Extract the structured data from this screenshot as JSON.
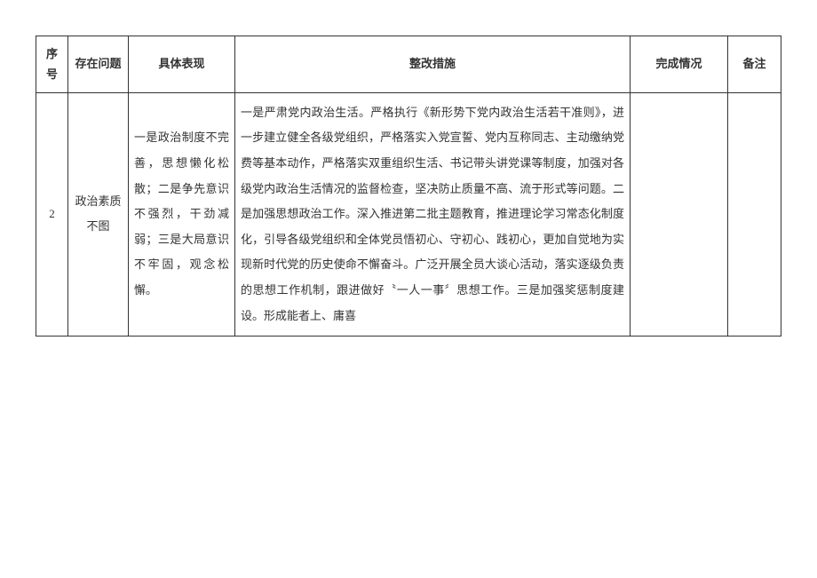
{
  "table": {
    "headers": {
      "seq": "序号",
      "problem": "存在问题",
      "detail": "具体表现",
      "measure": "整改措施",
      "status": "完成情况",
      "note": "备注"
    },
    "row": {
      "seq": "2",
      "problem": "政治素质不图",
      "detail": "一是政治制度不完善，思想懒化松散；二是争先意识不强烈，干劲减弱；三是大局意识不牢固，观念松懈。",
      "measure": "一是严肃党内政治生活。严格执行《新形势下党内政治生活若干准则》，进一步建立健全各级党组织，严格落实入党宣誓、党内互称同志、主动缴纳党费等基本动作，严格落实双重组织生活、书记带头讲党课等制度，加强对各级党内政治生活情况的监督检查，坚决防止质量不高、流于形式等问题。二是加强思想政治工作。深入推进第二批主题教育，推进理论学习常态化制度化，引导各级党组织和全体党员悟初心、守初心、践初心，更加自觉地为实现新时代党的历史使命不懈奋斗。广泛开展全员大谈心活动，落实逐级负责的思想工作机制，跟进做好〝一人一事〞思想工作。三是加强奖惩制度建设。形成能者上、庸喜",
      "status": "",
      "note": ""
    }
  },
  "colors": {
    "text": "#333333",
    "border": "#333333",
    "background": "#ffffff"
  },
  "typography": {
    "font_family": "SimSun",
    "font_size_pt": 10,
    "line_height": 2.2
  }
}
